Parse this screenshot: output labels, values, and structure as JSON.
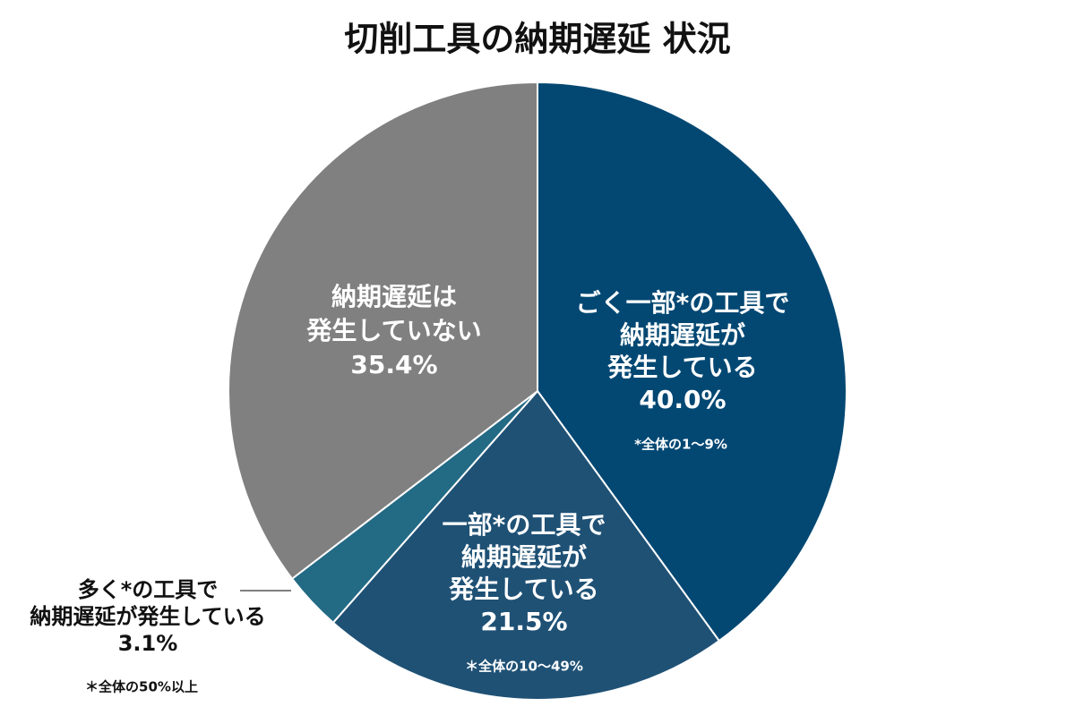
{
  "chart_data": {
    "type": "pie",
    "title": "切削工具の納期遅延 状況",
    "categories": [
      [
        "ごく一部*の工具で",
        "納期遅延が",
        "発生している"
      ],
      [
        "一部*の工具で",
        "納期遅延が",
        "発生している"
      ],
      [
        "多く*の工具で",
        "納期遅延が発生している"
      ],
      [
        "納期遅延は",
        "発生していない"
      ]
    ],
    "values": [
      40.0,
      21.5,
      3.1,
      35.4
    ],
    "value_labels": [
      "40.0%",
      "21.5%",
      "3.1%",
      "35.4%"
    ],
    "colors": [
      "#034873",
      "#1f5175",
      "#236a85",
      "#808080"
    ],
    "notes": [
      "*全体の1〜9%",
      "＊全体の10〜49%",
      "＊全体の50%以上"
    ]
  }
}
